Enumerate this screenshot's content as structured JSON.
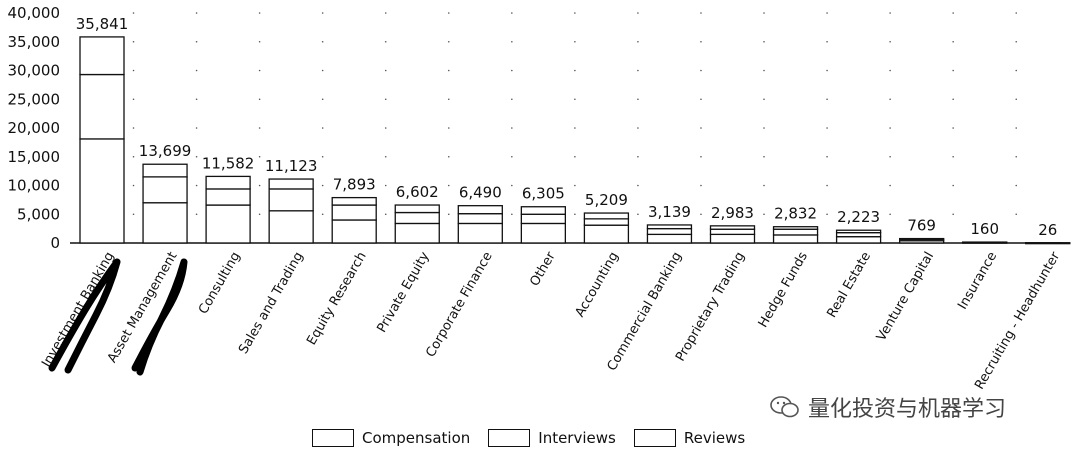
{
  "chart_data": {
    "type": "bar",
    "stacked": true,
    "categories": [
      "Investment Banking",
      "Asset Management",
      "Consulting",
      "Sales and Trading",
      "Equity Research",
      "Private Equity",
      "Corporate Finance",
      "Other",
      "Accounting",
      "Commercial Banking",
      "Proprietary Trading",
      "Hedge Funds",
      "Real Estate",
      "Venture Capital",
      "Insurance",
      "Recruiting - Headhunter"
    ],
    "totals": [
      35841,
      13699,
      11582,
      11123,
      7893,
      6602,
      6490,
      6305,
      5209,
      3139,
      2983,
      2832,
      2223,
      769,
      160,
      26
    ],
    "total_labels": [
      "35,841",
      "13,699",
      "11,582",
      "11,123",
      "7,893",
      "6,602",
      "6,490",
      "6,305",
      "5,209",
      "3,139",
      "2,983",
      "2,832",
      "2,223",
      "769",
      "160",
      "26"
    ],
    "series": [
      {
        "name": "Compensation",
        "values": [
          18100,
          7000,
          6600,
          5600,
          4000,
          3400,
          3400,
          3400,
          3100,
          1500,
          1500,
          1400,
          1100,
          400,
          80,
          13
        ]
      },
      {
        "name": "Interviews",
        "values": [
          11200,
          4500,
          2800,
          3800,
          2600,
          1900,
          1700,
          1600,
          1100,
          1000,
          900,
          1000,
          700,
          250,
          50,
          8
        ]
      },
      {
        "name": "Reviews",
        "values": [
          6541,
          2199,
          2182,
          1723,
          1293,
          1302,
          1390,
          1305,
          1009,
          639,
          583,
          432,
          423,
          119,
          30,
          5
        ]
      }
    ],
    "y_ticks": [
      "0",
      "5,000",
      "10,000",
      "15,000",
      "20,000",
      "25,000",
      "30,000",
      "35,000",
      "40,000"
    ],
    "ylim": [
      0,
      40000
    ],
    "legend": [
      "Compensation",
      "Interviews",
      "Reviews"
    ],
    "legend_position": "bottom",
    "grid": false
  },
  "annotations": {
    "scribbled_categories": [
      "Investment Banking",
      "Asset Management"
    ]
  },
  "watermark": {
    "text": "量化投资与机器学习",
    "icon": "wechat-icon"
  }
}
